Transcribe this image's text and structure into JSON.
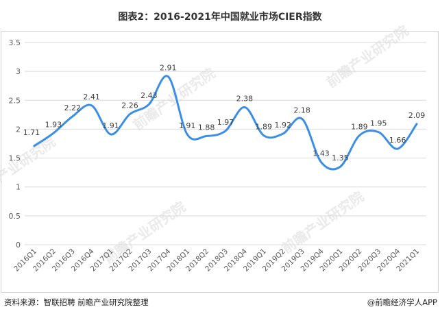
{
  "title": "图表2：2016-2021年中国就业市场CIER指数",
  "source_text": "资料来源：智联招聘 前瞻产业研究院整理",
  "brand_text": "@前瞻经济学人APP",
  "watermark_text": "前瞻产业研究院",
  "colors": {
    "line": "#3a8ee6",
    "grid": "#d9d9d9",
    "axis_text": "#595959",
    "label_text": "#404040"
  },
  "chart_data": {
    "type": "line",
    "title": "图表2：2016-2021年中国就业市场CIER指数",
    "xlabel": "",
    "ylabel": "",
    "ylim": [
      0,
      3.5
    ],
    "yticks": [
      0,
      0.5,
      1,
      1.5,
      2,
      2.5,
      3,
      3.5
    ],
    "ytick_labels": [
      "0",
      "0.5",
      "1",
      "1.5",
      "2",
      "2.5",
      "3",
      "3.5"
    ],
    "grid": true,
    "legend": "none",
    "categories": [
      "2016Q1",
      "2016Q2",
      "2016Q3",
      "2016Q4",
      "2017Q1",
      "2017Q2",
      "2017Q3",
      "2017Q4",
      "2018Q1",
      "2018Q2",
      "2018Q3",
      "2018Q4",
      "2019Q1",
      "2019Q2",
      "2019Q3",
      "2019Q4",
      "2020Q1",
      "2020Q2",
      "2020Q3",
      "2020Q4",
      "2021Q1"
    ],
    "values": [
      1.71,
      1.93,
      2.22,
      2.41,
      1.91,
      2.26,
      2.43,
      2.91,
      1.91,
      1.88,
      1.97,
      2.38,
      1.89,
      1.92,
      2.18,
      1.43,
      1.35,
      1.89,
      1.95,
      1.66,
      2.09
    ],
    "data_labels": [
      "1.71",
      "1.93",
      "2.22",
      "2.41",
      "1.91",
      "2.26",
      "2.43",
      "2.91",
      "1.91",
      "1.88",
      "1.97",
      "2.38",
      "1.89",
      "1.92",
      "2.18",
      "1.43",
      "1.35",
      "1.89",
      "1.95",
      "1.66",
      "2.09"
    ]
  }
}
